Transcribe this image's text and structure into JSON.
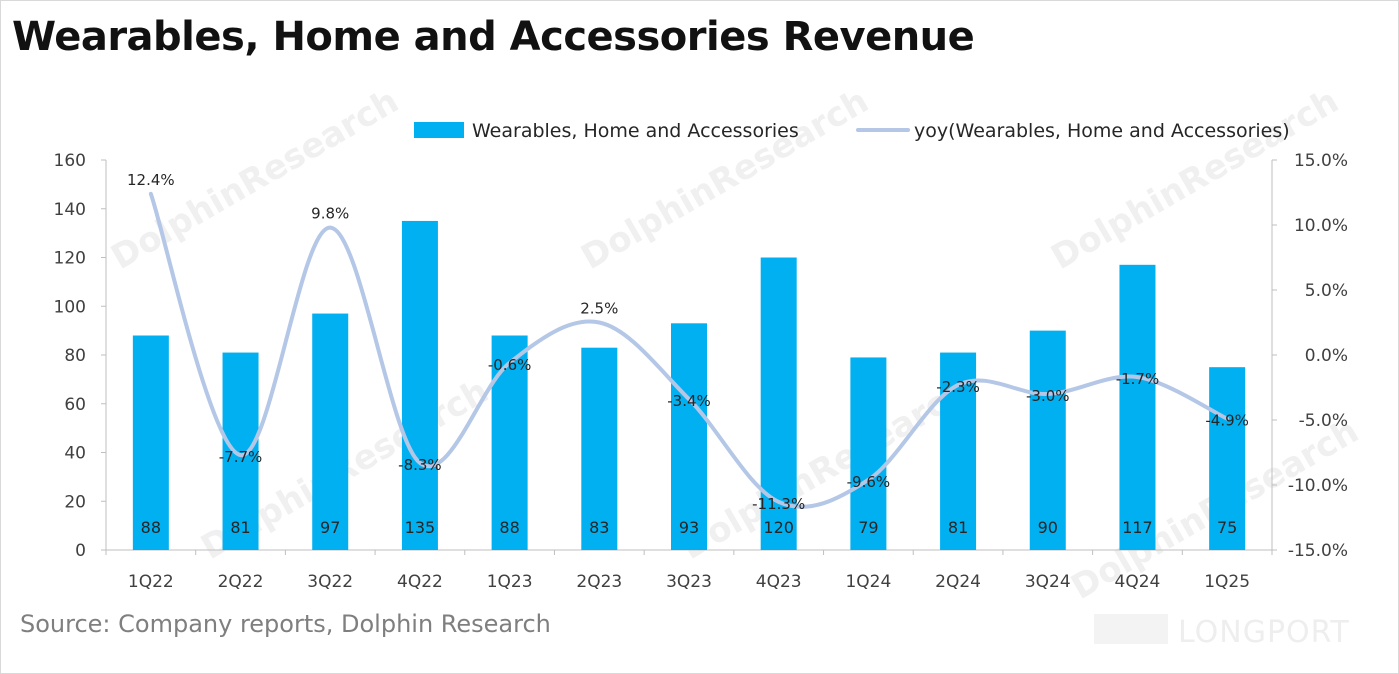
{
  "title": "Wearables, Home and Accessories Revenue",
  "source": "Source: Company reports, Dolphin Research",
  "watermark": {
    "brand": "DolphinResearch",
    "logo": "LONGPORT"
  },
  "chart_data": {
    "type": "bar",
    "categories": [
      "1Q22",
      "2Q22",
      "3Q22",
      "4Q22",
      "1Q23",
      "2Q23",
      "3Q23",
      "4Q23",
      "1Q24",
      "2Q24",
      "3Q24",
      "4Q24",
      "1Q25"
    ],
    "series": [
      {
        "name": "Wearables, Home and Accessories",
        "type": "bar",
        "axis": "left",
        "values": [
          88,
          81,
          97,
          135,
          88,
          83,
          93,
          120,
          79,
          81,
          90,
          117,
          75
        ],
        "color": "#00b0f0"
      },
      {
        "name": "yoy(Wearables, Home and Accessories)",
        "type": "line",
        "axis": "right",
        "values": [
          12.4,
          -7.7,
          9.8,
          -8.3,
          -0.6,
          2.5,
          -3.4,
          -11.3,
          -9.6,
          -2.3,
          -3.0,
          -1.7,
          -4.9
        ],
        "labels": [
          "12.4%",
          "-7.7%",
          "9.8%",
          "-8.3%",
          "-0.6%",
          "2.5%",
          "-3.4%",
          "-11.3%",
          "-9.6%",
          "-2.3%",
          "-3.0%",
          "-1.7%",
          "-4.9%"
        ],
        "color": "#b4c7e7"
      }
    ],
    "y_left": {
      "ylim": [
        0,
        160
      ],
      "ticks": [
        "0",
        "20",
        "40",
        "60",
        "80",
        "100",
        "120",
        "140",
        "160"
      ]
    },
    "y_right": {
      "ylim": [
        -15,
        15
      ],
      "ticks": [
        "-15.0%",
        "-10.0%",
        "-5.0%",
        "0.0%",
        "5.0%",
        "10.0%",
        "15.0%"
      ]
    },
    "legend": "top-right",
    "grid": false
  }
}
